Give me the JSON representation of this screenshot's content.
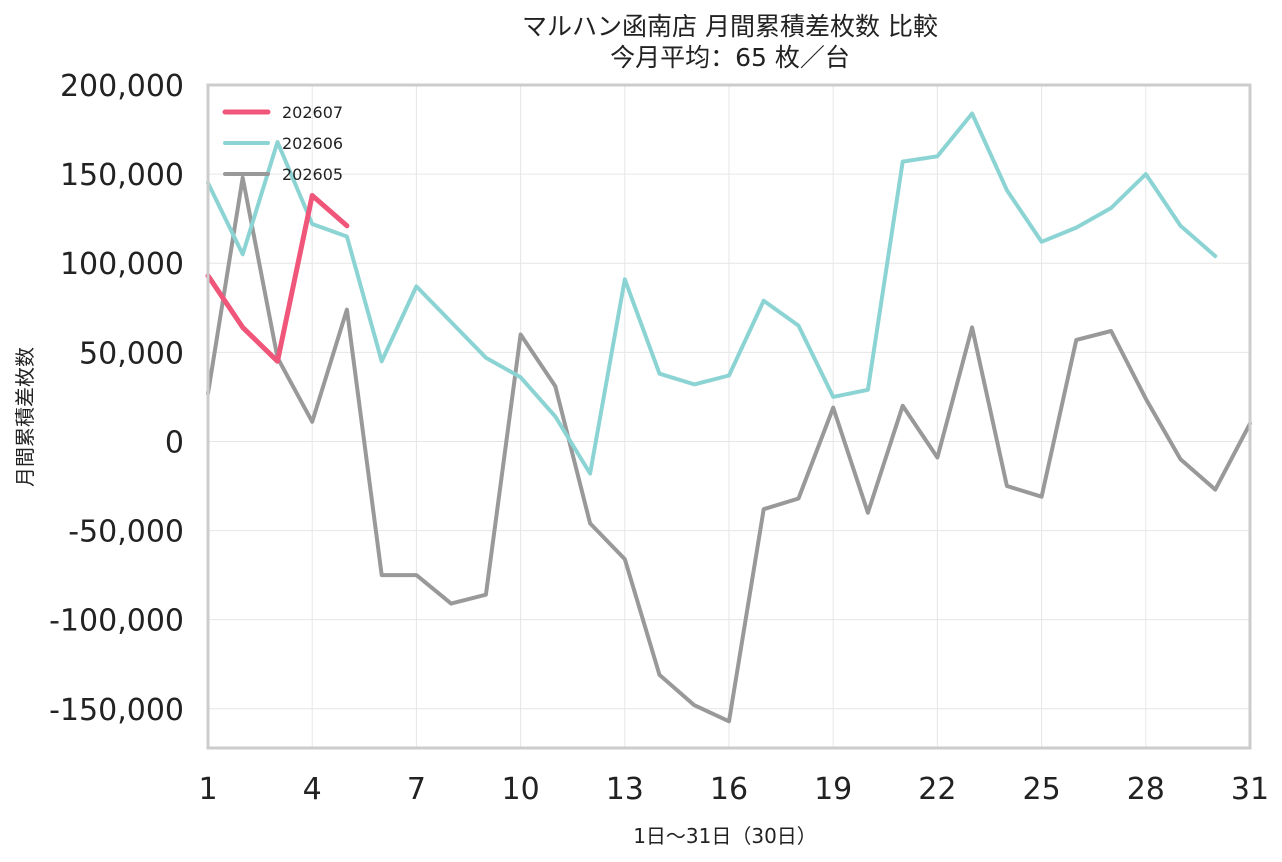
{
  "chart_data": {
    "type": "line",
    "title": "マルハン函南店 月間累積差枚数 比較",
    "subtitle": "今月平均：65 枚／台",
    "xlabel": "1日〜31日（30日）",
    "ylabel": "月間累積差枚数",
    "xlim": [
      1,
      31
    ],
    "ylim": [
      -172000,
      200000
    ],
    "xticks": [
      1,
      4,
      7,
      10,
      13,
      16,
      19,
      22,
      25,
      28,
      31
    ],
    "yticks": [
      200000,
      150000,
      100000,
      50000,
      0,
      -50000,
      -100000,
      -150000
    ],
    "ytick_labels": [
      "200,000",
      "150,000",
      "100,000",
      "50,000",
      "0",
      "-50,000",
      "-100,000",
      "-150,000"
    ],
    "grid": true,
    "legend_position": "top-left",
    "series": [
      {
        "name": "202607",
        "color": "#f0557a",
        "x": [
          1,
          2,
          3,
          4,
          5
        ],
        "values": [
          93000,
          64000,
          45000,
          138000,
          121000
        ]
      },
      {
        "name": "202606",
        "color": "#8cd4d4",
        "x": [
          1,
          2,
          3,
          4,
          5,
          6,
          7,
          8,
          9,
          10,
          11,
          12,
          13,
          14,
          15,
          16,
          17,
          18,
          19,
          20,
          21,
          22,
          23,
          24,
          25,
          26,
          27,
          28,
          29,
          30
        ],
        "values": [
          145000,
          105000,
          168000,
          122000,
          115000,
          45000,
          87000,
          67000,
          47000,
          36000,
          14000,
          -18000,
          91000,
          38000,
          32000,
          37000,
          79000,
          65000,
          25000,
          29000,
          157000,
          160000,
          184000,
          141000,
          112000,
          120000,
          131000,
          150000,
          121000,
          104000
        ]
      },
      {
        "name": "202605",
        "color": "#999999",
        "x": [
          1,
          2,
          3,
          4,
          5,
          6,
          7,
          8,
          9,
          10,
          11,
          12,
          13,
          14,
          15,
          16,
          17,
          18,
          19,
          20,
          21,
          22,
          23,
          24,
          25,
          26,
          27,
          28,
          29,
          30,
          31
        ],
        "values": [
          27000,
          148000,
          47000,
          11000,
          74000,
          -75000,
          -75000,
          -91000,
          -86000,
          60000,
          31000,
          -46000,
          -66000,
          -131000,
          -148000,
          -157000,
          -38000,
          -32000,
          19000,
          -40000,
          20000,
          -9000,
          64000,
          -25000,
          -31000,
          57000,
          62000,
          24000,
          -10000,
          -27000,
          10000
        ]
      }
    ]
  }
}
